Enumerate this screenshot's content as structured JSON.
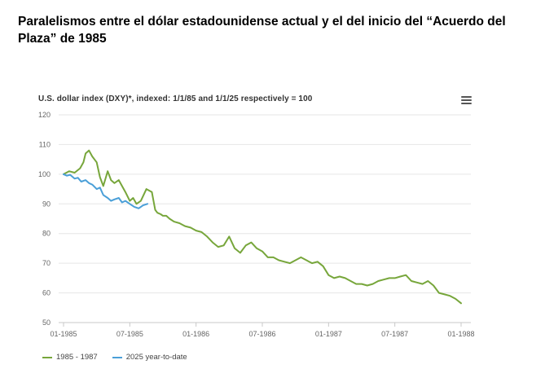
{
  "headline": "Paralelismos entre el dólar estadounidense actual y el del inicio del “Acuerdo del Plaza” de 1985",
  "chart_data": {
    "type": "line",
    "title": "U.S. dollar index (DXY)*, indexed: 1/1/85 and 1/1/25 respectively = 100",
    "xlabel": "",
    "ylabel": "",
    "ylim": [
      50,
      120
    ],
    "yticks": [
      50,
      60,
      70,
      80,
      90,
      100,
      110,
      120
    ],
    "xlim": [
      0,
      36
    ],
    "xticks": [
      {
        "x": 0,
        "label": "01-1985"
      },
      {
        "x": 6,
        "label": "07-1985"
      },
      {
        "x": 12,
        "label": "01-1986"
      },
      {
        "x": 18,
        "label": "07-1986"
      },
      {
        "x": 24,
        "label": "01-1987"
      },
      {
        "x": 30,
        "label": "07-1987"
      },
      {
        "x": 36,
        "label": "01-1988"
      }
    ],
    "grid": true,
    "series": [
      {
        "name": "1985 - 1987",
        "color": "#77a63b",
        "x": [
          0,
          0.5,
          1,
          1.5,
          1.8,
          2.0,
          2.3,
          2.6,
          3.0,
          3.3,
          3.6,
          4.0,
          4.3,
          4.6,
          5.0,
          5.3,
          5.6,
          6.0,
          6.3,
          6.6,
          7.0,
          7.5,
          8.0,
          8.3,
          8.5,
          8.8,
          9.0,
          9.3,
          9.6,
          10.0,
          10.5,
          11.0,
          11.5,
          12.0,
          12.5,
          13.0,
          13.5,
          14.0,
          14.5,
          15.0,
          15.5,
          16.0,
          16.5,
          17.0,
          17.5,
          18.0,
          18.5,
          19.0,
          19.5,
          20.0,
          20.5,
          21.0,
          21.5,
          22.0,
          22.5,
          23.0,
          23.5,
          24.0,
          24.5,
          25.0,
          25.5,
          26.0,
          26.5,
          27.0,
          27.5,
          28.0,
          28.5,
          29.0,
          29.5,
          30.0,
          30.5,
          31.0,
          31.5,
          32.0,
          32.5,
          33.0,
          33.5,
          34.0,
          34.5,
          35.0,
          35.5,
          36.0
        ],
        "values": [
          100,
          101,
          100.5,
          102,
          104,
          107,
          108,
          106,
          104,
          99,
          96,
          101,
          98,
          97,
          98,
          96,
          94,
          91,
          92,
          90,
          91,
          95,
          94,
          88,
          87,
          86.5,
          86,
          86,
          85,
          84,
          83.5,
          82.5,
          82,
          81,
          80.5,
          79,
          77,
          75.5,
          76,
          79,
          75,
          73.5,
          76,
          77,
          75,
          74,
          72,
          72,
          71,
          70.5,
          70,
          71,
          72,
          71,
          70,
          70.5,
          69,
          66,
          65,
          65.5,
          65,
          64,
          63,
          63,
          62.5,
          63,
          64,
          64.5,
          65,
          65,
          65.5,
          66,
          64,
          63.5,
          63,
          64,
          62.5,
          60,
          59.5,
          59,
          58,
          56.5
        ]
      },
      {
        "name": "2025 year-to-date",
        "color": "#4a9fd8",
        "x": [
          0,
          0.3,
          0.6,
          1.0,
          1.3,
          1.6,
          2.0,
          2.3,
          2.6,
          3.0,
          3.3,
          3.6,
          4.0,
          4.3,
          4.6,
          5.0,
          5.3,
          5.6,
          6.0,
          6.4,
          6.8,
          7.2,
          7.6
        ],
        "values": [
          100,
          99.5,
          99.8,
          98.5,
          98.8,
          97.5,
          98,
          97,
          96.5,
          95,
          95.5,
          93,
          92,
          91,
          91.5,
          92,
          90.5,
          91,
          90,
          89,
          88.5,
          89.5,
          90
        ]
      }
    ]
  }
}
